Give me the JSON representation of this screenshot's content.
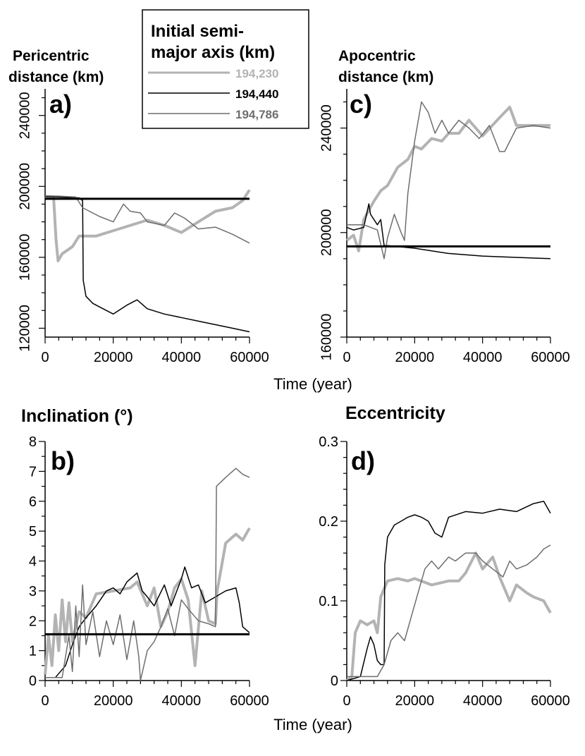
{
  "colors": {
    "a230": "#b3b3b3",
    "a440": "#000000",
    "a786": "#6e6e6e",
    "reference": "#000000"
  },
  "legend": {
    "title_line1": "Initial semi-",
    "title_line2": "major axis (km)",
    "entries": [
      "194,230",
      "194,440",
      "194,786"
    ]
  },
  "shared_xlabel": "Time (year)",
  "chart_data": [
    {
      "panel": "a)",
      "type": "line",
      "title_line1": "Pericentric",
      "title_line2": "distance (km)",
      "xlabel": "Time (year)",
      "xlim": [
        0,
        60000
      ],
      "ylim": [
        115000,
        255000
      ],
      "xticks": [
        0,
        20000,
        40000,
        60000
      ],
      "xtick_labels": [
        "0",
        "20000",
        "40000",
        "60000"
      ],
      "yticks": [
        120000,
        160000,
        200000,
        240000
      ],
      "ytick_labels": [
        "120000",
        "160000",
        "200000",
        "240000"
      ],
      "reference_line": 193000,
      "series": [
        {
          "name": "194,230",
          "color": "#b3b3b3",
          "width": 4,
          "x": [
            0,
            2500,
            3200,
            3800,
            5000,
            8000,
            10000,
            12000,
            15000,
            20000,
            25000,
            30000,
            35000,
            40000,
            45000,
            50000,
            55000,
            58000,
            60000
          ],
          "y": [
            194000,
            193500,
            170000,
            158000,
            162000,
            166000,
            172000,
            172000,
            172000,
            175000,
            178000,
            181000,
            178000,
            174000,
            180000,
            186000,
            188000,
            192000,
            198000
          ]
        },
        {
          "name": "194,440",
          "color": "#000000",
          "width": 1.5,
          "x": [
            0,
            5000,
            10000,
            11000,
            11200,
            12000,
            14000,
            17000,
            20000,
            24000,
            27000,
            30000,
            35000,
            40000,
            45000,
            50000,
            55000,
            60000
          ],
          "y": [
            194300,
            194000,
            193500,
            192000,
            147000,
            138000,
            134000,
            131000,
            128000,
            133000,
            136000,
            131000,
            128000,
            126000,
            124000,
            122000,
            120000,
            118000
          ]
        },
        {
          "name": "194,786",
          "color": "#6e6e6e",
          "width": 1.5,
          "x": [
            0,
            4000,
            9000,
            11000,
            13000,
            16000,
            20000,
            23000,
            25000,
            28000,
            30000,
            35000,
            38000,
            41000,
            45000,
            50000,
            55000,
            60000
          ],
          "y": [
            194700,
            194500,
            194000,
            188000,
            186000,
            183000,
            180000,
            190000,
            186000,
            185000,
            180000,
            178000,
            185000,
            182000,
            176000,
            177000,
            173000,
            168000
          ]
        }
      ]
    },
    {
      "panel": "b)",
      "type": "line",
      "title_line1": "Inclination (°)",
      "xlabel": "Time (year)",
      "xlim": [
        0,
        60000
      ],
      "ylim": [
        0,
        8
      ],
      "xticks": [
        0,
        20000,
        40000,
        60000
      ],
      "xtick_labels": [
        "0",
        "20000",
        "40000",
        "60000"
      ],
      "yticks": [
        0,
        1,
        2,
        3,
        4,
        5,
        6,
        7,
        8
      ],
      "ytick_labels": [
        "0",
        "1",
        "2",
        "3",
        "4",
        "5",
        "6",
        "7",
        "8"
      ],
      "reference_line": 1.55,
      "series": [
        {
          "name": "194,230",
          "color": "#b3b3b3",
          "width": 4,
          "x": [
            0,
            1000,
            2000,
            3000,
            4000,
            5000,
            6000,
            7000,
            8000,
            10000,
            12000,
            15000,
            20000,
            25000,
            27000,
            30000,
            32000,
            34000,
            36000,
            38000,
            40000,
            42000,
            44000,
            46000,
            48000,
            50000,
            50500,
            53000,
            56000,
            58000,
            60000
          ],
          "y": [
            0.2,
            1.5,
            0.5,
            2.2,
            1.0,
            2.7,
            1.3,
            2.6,
            1.3,
            2.3,
            2.1,
            2.9,
            3.0,
            3.1,
            3.3,
            2.5,
            3.1,
            1.8,
            2.3,
            3.1,
            3.4,
            2.7,
            0.5,
            3.0,
            2.0,
            1.9,
            3.0,
            4.6,
            4.9,
            4.7,
            5.1
          ]
        },
        {
          "name": "194,440",
          "color": "#000000",
          "width": 1.5,
          "x": [
            0,
            3000,
            6000,
            8000,
            10000,
            12000,
            15000,
            18000,
            20000,
            22000,
            24000,
            27000,
            28500,
            30000,
            32000,
            35000,
            37000,
            40000,
            41000,
            43000,
            45000,
            47000,
            50000,
            53000,
            56000,
            57000,
            58000,
            60000
          ],
          "y": [
            0.1,
            0.1,
            0.5,
            1.2,
            1.8,
            2.1,
            2.5,
            3.0,
            3.1,
            2.9,
            3.3,
            3.6,
            3.0,
            2.8,
            2.5,
            3.2,
            2.5,
            3.4,
            3.8,
            3.1,
            3.2,
            2.6,
            2.8,
            3.0,
            3.1,
            2.6,
            1.8,
            1.6
          ]
        },
        {
          "name": "194,786",
          "color": "#6e6e6e",
          "width": 1.5,
          "x": [
            0,
            5000,
            7000,
            8000,
            9000,
            10000,
            11000,
            12000,
            14000,
            16000,
            18000,
            20000,
            22000,
            24000,
            26000,
            27500,
            28000,
            30000,
            32000,
            34000,
            36000,
            38000,
            40000,
            42000,
            45000,
            48000,
            50000,
            50300,
            53000,
            56000,
            58000,
            60000
          ],
          "y": [
            0.1,
            0.1,
            1.5,
            0.3,
            2.5,
            0.8,
            3.2,
            1.2,
            2.3,
            0.8,
            2.0,
            1.2,
            2.2,
            0.7,
            2.0,
            0.8,
            0.0,
            1.0,
            1.3,
            1.8,
            2.4,
            1.5,
            2.7,
            2.4,
            2.0,
            1.9,
            1.8,
            6.5,
            6.8,
            7.1,
            6.9,
            6.8
          ]
        }
      ]
    },
    {
      "panel": "c)",
      "type": "line",
      "title_line1": "Apocentric",
      "title_line2": "distance (km)",
      "xlabel": "Time (year)",
      "xlim": [
        0,
        60000
      ],
      "ylim": [
        160000,
        255000
      ],
      "xticks": [
        0,
        20000,
        40000,
        60000
      ],
      "xtick_labels": [
        "0",
        "20000",
        "40000",
        "60000"
      ],
      "yticks": [
        160000,
        200000,
        240000
      ],
      "ytick_labels": [
        "160000",
        "200000",
        "240000"
      ],
      "reference_line": 194700,
      "series": [
        {
          "name": "194,230",
          "color": "#b3b3b3",
          "width": 4,
          "x": [
            0,
            2000,
            3500,
            5000,
            8000,
            10000,
            12000,
            15000,
            18000,
            20000,
            22000,
            25000,
            28000,
            30000,
            33000,
            36000,
            40000,
            45000,
            48000,
            50000,
            55000,
            60000
          ],
          "y": [
            197000,
            199000,
            193000,
            205000,
            212000,
            216000,
            218000,
            225000,
            228000,
            233000,
            232000,
            236000,
            235000,
            238000,
            238000,
            243000,
            237000,
            244000,
            248000,
            241000,
            241000,
            241000
          ]
        },
        {
          "name": "194,440",
          "color": "#000000",
          "width": 1.5,
          "x": [
            0,
            2000,
            5000,
            6500,
            7000,
            9000,
            10000,
            11000,
            12000,
            20000,
            30000,
            40000,
            50000,
            60000
          ],
          "y": [
            202000,
            201000,
            202000,
            211000,
            207000,
            203000,
            205000,
            195000,
            195000,
            194000,
            192000,
            191000,
            190500,
            190000
          ]
        },
        {
          "name": "194,786",
          "color": "#6e6e6e",
          "width": 1.5,
          "x": [
            0,
            5000,
            9000,
            11000,
            12000,
            14000,
            16000,
            17000,
            18000,
            20000,
            22000,
            24000,
            26000,
            28000,
            30000,
            33000,
            36000,
            39000,
            42000,
            45000,
            46500,
            50000,
            55000,
            60000
          ],
          "y": [
            203000,
            203000,
            201000,
            190000,
            198000,
            207000,
            200000,
            197000,
            215000,
            235000,
            250000,
            246000,
            238000,
            243000,
            238000,
            243000,
            240000,
            236000,
            241000,
            231000,
            231000,
            240000,
            241000,
            240000
          ]
        }
      ]
    },
    {
      "panel": "d)",
      "type": "line",
      "title_line1": "Eccentricity",
      "xlabel": "Time (year)",
      "xlim": [
        0,
        60000
      ],
      "ylim": [
        0,
        0.3
      ],
      "xticks": [
        0,
        20000,
        40000,
        60000
      ],
      "xtick_labels": [
        "0",
        "20000",
        "40000",
        "60000"
      ],
      "yticks": [
        0,
        0.1,
        0.2,
        0.3
      ],
      "ytick_labels": [
        "0",
        "0.1",
        "0.2",
        "0.3"
      ],
      "series": [
        {
          "name": "194,230",
          "color": "#b3b3b3",
          "width": 4,
          "x": [
            0,
            1500,
            2500,
            4000,
            6000,
            8000,
            9000,
            10000,
            12000,
            15000,
            18000,
            20000,
            25000,
            30000,
            33000,
            35000,
            38000,
            40000,
            43000,
            45000,
            48000,
            50000,
            53000,
            55000,
            58000,
            60000
          ],
          "y": [
            0.0,
            0.005,
            0.06,
            0.075,
            0.07,
            0.075,
            0.06,
            0.105,
            0.125,
            0.128,
            0.125,
            0.128,
            0.12,
            0.125,
            0.125,
            0.135,
            0.16,
            0.14,
            0.155,
            0.13,
            0.1,
            0.12,
            0.11,
            0.105,
            0.1,
            0.085
          ]
        },
        {
          "name": "194,440",
          "color": "#000000",
          "width": 1.5,
          "x": [
            0,
            4000,
            6000,
            7000,
            8000,
            9000,
            10000,
            11000,
            11200,
            12000,
            14000,
            16000,
            18000,
            20000,
            22000,
            24000,
            26000,
            28000,
            30000,
            35000,
            40000,
            45000,
            50000,
            55000,
            58000,
            60000
          ],
          "y": [
            0.0,
            0.005,
            0.04,
            0.055,
            0.045,
            0.025,
            0.02,
            0.02,
            0.145,
            0.18,
            0.195,
            0.2,
            0.205,
            0.208,
            0.205,
            0.2,
            0.185,
            0.18,
            0.205,
            0.212,
            0.21,
            0.215,
            0.212,
            0.222,
            0.225,
            0.21
          ]
        },
        {
          "name": "194,786",
          "color": "#6e6e6e",
          "width": 1.5,
          "x": [
            0,
            5000,
            9000,
            11000,
            13000,
            15000,
            17000,
            19000,
            21000,
            23000,
            25000,
            27000,
            30000,
            32000,
            35000,
            38000,
            40000,
            43000,
            46000,
            48000,
            50000,
            53000,
            56000,
            58000,
            60000
          ],
          "y": [
            0.005,
            0.005,
            0.005,
            0.02,
            0.05,
            0.06,
            0.05,
            0.08,
            0.11,
            0.14,
            0.15,
            0.14,
            0.155,
            0.15,
            0.16,
            0.16,
            0.15,
            0.14,
            0.13,
            0.15,
            0.14,
            0.145,
            0.155,
            0.165,
            0.17
          ]
        }
      ]
    }
  ]
}
